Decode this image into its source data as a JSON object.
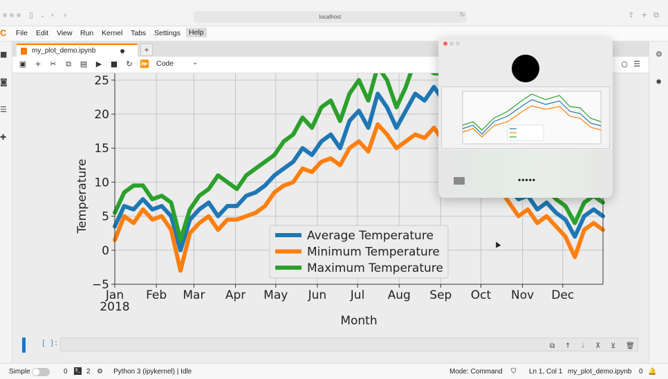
{
  "browser": {
    "url": "localhost"
  },
  "menu": [
    "File",
    "Edit",
    "View",
    "Run",
    "Kernel",
    "Tabs",
    "Settings",
    "Help"
  ],
  "tab": {
    "title": "my_plot_demo.ipynb"
  },
  "toolbar": {
    "cell_type": "Code"
  },
  "cell": {
    "prompt": "[ ]:"
  },
  "status": {
    "mode_label": "Simple",
    "count_a": "0",
    "count_b": "2",
    "kernel": "Python 3 (ipykernel) | Idle",
    "mode": "Mode: Command",
    "cursor": "Ln 1, Col 1",
    "file": "my_plot_demo.ipynb",
    "notifications": "0"
  },
  "popup": {
    "dots": "•••••"
  },
  "chart_data": {
    "type": "line",
    "xlabel": "Month",
    "ylabel": "Temperature",
    "ylim": [
      -5,
      26
    ],
    "yticks": [
      -5,
      0,
      5,
      10,
      15,
      20,
      25
    ],
    "xticks": [
      "Jan\n2018",
      "Feb",
      "Mar",
      "Apr",
      "May",
      "Jun",
      "Jul",
      "Aug",
      "Sep",
      "Oct",
      "Nov",
      "Dec"
    ],
    "x_day_of_year": [
      1,
      8,
      15,
      22,
      29,
      36,
      43,
      50,
      57,
      64,
      71,
      78,
      85,
      92,
      99,
      106,
      113,
      120,
      127,
      134,
      141,
      148,
      155,
      162,
      169,
      176,
      183,
      190,
      197,
      204,
      211,
      218,
      225,
      232,
      239,
      246,
      253,
      260,
      267,
      274,
      281,
      288,
      295,
      302,
      309,
      316,
      323,
      330,
      337,
      344,
      351,
      358,
      365
    ],
    "legend_position": "lower center",
    "grid": true,
    "series": [
      {
        "name": "Average Temperature",
        "color": "#1f77b4",
        "values": [
          3.5,
          6.5,
          6,
          7.5,
          6,
          6.5,
          5,
          0,
          4.5,
          6,
          7,
          5,
          6.5,
          6.5,
          8,
          8.5,
          9.5,
          11,
          12,
          13,
          15,
          14,
          16,
          17,
          15,
          19,
          20.5,
          18,
          23,
          21,
          18,
          20.5,
          23,
          22,
          24,
          22,
          18.5,
          18,
          17.5,
          17,
          14,
          13,
          9,
          7.5,
          8,
          6,
          7,
          5.5,
          4.5,
          2,
          5,
          6,
          5
        ]
      },
      {
        "name": "Minimum Temperature",
        "color": "#ff7f0e",
        "values": [
          1.5,
          5,
          4,
          6,
          4.5,
          5,
          3,
          -3,
          2.5,
          4,
          5,
          3,
          4.5,
          4.5,
          5,
          5.5,
          6.5,
          8.5,
          9.5,
          10,
          12,
          11.5,
          13,
          13.5,
          12.5,
          15,
          16,
          14.5,
          18.5,
          17,
          15,
          16,
          17,
          16.5,
          18,
          16,
          14,
          13.5,
          13,
          12.5,
          10,
          9,
          7,
          5,
          6,
          4,
          5,
          3.5,
          2,
          -1,
          3,
          4,
          3
        ]
      },
      {
        "name": "Maximum Temperature",
        "color": "#2ca02c",
        "values": [
          5.5,
          8.5,
          9.5,
          9.5,
          7.5,
          8,
          7,
          1.5,
          6,
          8,
          9,
          11,
          10,
          9,
          11,
          12,
          13,
          14,
          16,
          17,
          19.5,
          18,
          21,
          22,
          19,
          23,
          25,
          22,
          27,
          25,
          21,
          24,
          28,
          27,
          26,
          26,
          22,
          21,
          21,
          21,
          18,
          17,
          11,
          10,
          10,
          8,
          9,
          7.5,
          6.5,
          4,
          7,
          8,
          7
        ]
      }
    ]
  }
}
